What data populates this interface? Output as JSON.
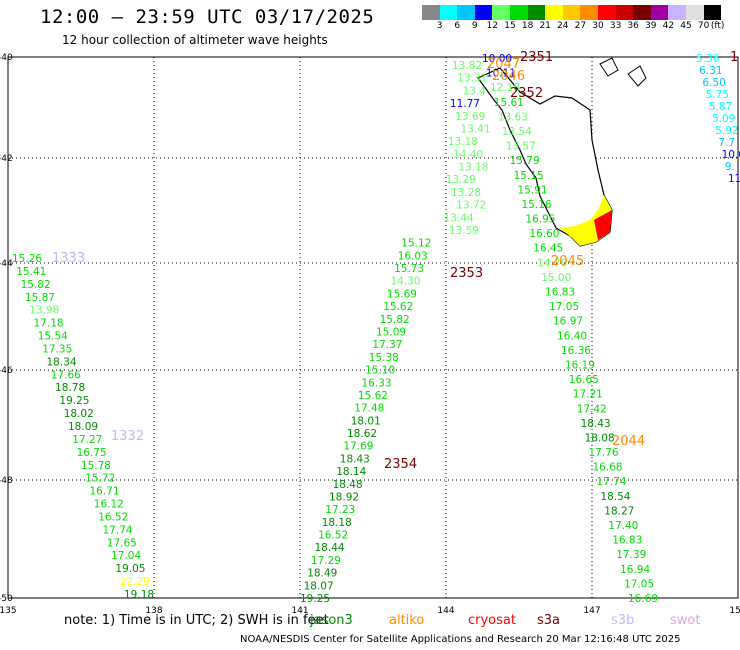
{
  "header": {
    "title": "12:00 — 23:59 UTC 03/17/2025",
    "subtitle": "12 hour collection of altimeter wave heights"
  },
  "color_scale": {
    "unit": "(ft)",
    "colors": [
      "#888888",
      "#00ffff",
      "#00c8ff",
      "#0000ff",
      "#64ff64",
      "#00dc00",
      "#008c00",
      "#ffff00",
      "#ffc800",
      "#ff8c00",
      "#ff0000",
      "#c80000",
      "#780000",
      "#a000a0",
      "#c8b4ff",
      "#e0e0e0",
      "#000000"
    ],
    "labels": [
      "3",
      "6",
      "9",
      "12",
      "15",
      "18",
      "21",
      "24",
      "27",
      "30",
      "33",
      "36",
      "39",
      "42",
      "45",
      "70"
    ]
  },
  "axes": {
    "lon_labels": [
      "135",
      "138",
      "141",
      "144",
      "147",
      "150"
    ],
    "lat_labels": [
      "-40",
      "-42",
      "-44",
      "-46",
      "-48",
      "-50"
    ]
  },
  "tracks": [
    {
      "name": "track-1333",
      "color": "#008c00",
      "values": [
        "15.26",
        "15.41",
        "15.82",
        "15.87",
        "13.98",
        "17.18",
        "15.54",
        "17.35",
        "18.34",
        "17.66",
        "18.78",
        "19.25",
        "18.02",
        "18.09",
        "17.27",
        "16.75",
        "15.78",
        "15.72",
        "16.71",
        "16.12",
        "16.52",
        "17.74",
        "17.65",
        "17.04",
        "19.05",
        "22.29",
        "19.18"
      ]
    },
    {
      "name": "track-2353",
      "color": "#008c00",
      "values": [
        "13.82",
        "13.31",
        "13.4",
        "11.77",
        "13.69",
        "13.41",
        "13.18",
        "14.40",
        "13.18",
        "13.29",
        "13.28",
        "13.72",
        "13.44",
        "13.59",
        "15.12",
        "16.03",
        "15.73",
        "14.30",
        "15.69",
        "15.62",
        "15.82",
        "15.09",
        "17.37",
        "15.38",
        "15.10",
        "16.33",
        "15.62",
        "17.48",
        "18.01",
        "18.62",
        "17.69",
        "18.43",
        "18.14",
        "18.48",
        "18.92",
        "17.23",
        "18.18",
        "16.52",
        "18.44",
        "17.29",
        "18.49",
        "18.07",
        "19.25"
      ]
    },
    {
      "name": "track-2045",
      "color": "#008c00",
      "values": [
        "10.00",
        "10.11",
        "12.18",
        "15.61",
        "13.63",
        "13.54",
        "13.57",
        "15.79",
        "15.15",
        "15.91",
        "15.16",
        "16.95",
        "16.60",
        "16.45",
        "14.70",
        "15.00",
        "16.83",
        "17.05",
        "16.97",
        "16.40",
        "16.36",
        "16.19",
        "16.65",
        "17.21",
        "17.42",
        "18.43",
        "18.08",
        "17.76",
        "16.68",
        "17.74",
        "18.54",
        "18.27",
        "17.40",
        "16.83",
        "17.39",
        "16.94",
        "17.05",
        "16.69"
      ]
    },
    {
      "name": "track-east",
      "color": "#00c8ff",
      "values": [
        "5.36",
        "6.31",
        "6.50",
        "5.75",
        "5.87",
        "5.09",
        "5.92",
        "7.7",
        "10.0",
        "9.",
        "11"
      ]
    }
  ],
  "pass_labels": [
    {
      "text": "2351",
      "color": "#780000"
    },
    {
      "text": "2352",
      "color": "#780000"
    },
    {
      "text": "2353",
      "color": "#780000"
    },
    {
      "text": "2354",
      "color": "#780000"
    },
    {
      "text": "2047",
      "color": "#ff8c00"
    },
    {
      "text": "2046",
      "color": "#ff8c00"
    },
    {
      "text": "2045",
      "color": "#ff8c00"
    },
    {
      "text": "2044",
      "color": "#ff8c00"
    },
    {
      "text": "1333",
      "color": "#c8b4ff"
    },
    {
      "text": "1332",
      "color": "#c8b4ff"
    },
    {
      "text": "1",
      "color": "#780000"
    }
  ],
  "footer": {
    "note": "note: 1) Time is in UTC; 2) SWH is in feet",
    "legend": [
      {
        "label": "jason3",
        "color": "#008c00"
      },
      {
        "label": "altiko",
        "color": "#ff8c00"
      },
      {
        "label": "cryosat",
        "color": "#ff0000"
      },
      {
        "label": "s3a",
        "color": "#780000"
      },
      {
        "label": "s3b",
        "color": "#c8b4ff"
      },
      {
        "label": "swot",
        "color": "#e0a0e0"
      }
    ],
    "credit": "NOAA/NESDIS Center for Satellite Applications and Research    20 Mar 12:16:48 UTC 2025"
  }
}
